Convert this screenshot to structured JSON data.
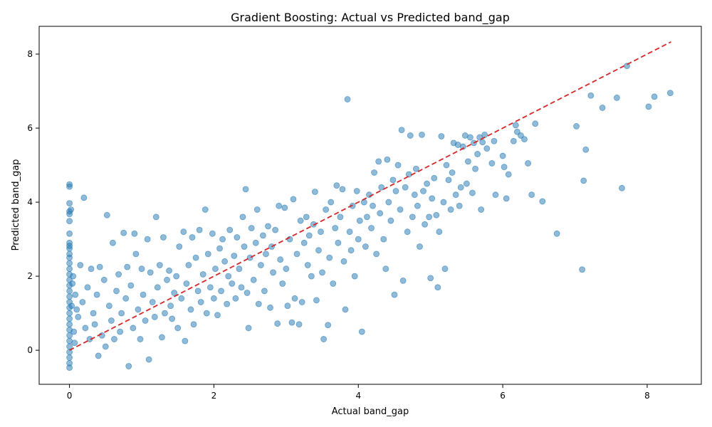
{
  "chart_data": {
    "type": "scatter",
    "title": "Gradient Boosting: Actual vs Predicted band_gap",
    "xlabel": "Actual band_gap",
    "ylabel": "Predicted band_gap",
    "xlim": [
      -0.42,
      8.75
    ],
    "ylim": [
      -0.92,
      8.75
    ],
    "xticks": [
      0,
      2,
      4,
      6,
      8
    ],
    "yticks": [
      0,
      2,
      4,
      6,
      8
    ],
    "grid": false,
    "legend": "none",
    "colors": {
      "points": "#1f77b4",
      "reference_line": "#d62728"
    },
    "reference_line": {
      "style": "dashed",
      "from": [
        0,
        0
      ],
      "to": [
        8.33,
        8.33
      ]
    },
    "points": [
      [
        0,
        4.48
      ],
      [
        0,
        4.42
      ],
      [
        0,
        3.97
      ],
      [
        0,
        3.75
      ],
      [
        0,
        3.68
      ],
      [
        0,
        3.49
      ],
      [
        0,
        3.15
      ],
      [
        0,
        2.9
      ],
      [
        0,
        2.82
      ],
      [
        0,
        2.75
      ],
      [
        0,
        2.6
      ],
      [
        0,
        2.5
      ],
      [
        0,
        2.35
      ],
      [
        0,
        2.2
      ],
      [
        0,
        2.05
      ],
      [
        0,
        1.9
      ],
      [
        0,
        1.75
      ],
      [
        0,
        1.6
      ],
      [
        0,
        1.45
      ],
      [
        0,
        1.3
      ],
      [
        0,
        1.15
      ],
      [
        0,
        1.0
      ],
      [
        0,
        0.85
      ],
      [
        0,
        0.7
      ],
      [
        0,
        0.55
      ],
      [
        0,
        0.4
      ],
      [
        0,
        0.25
      ],
      [
        0,
        0.1
      ],
      [
        0,
        -0.05
      ],
      [
        0,
        -0.2
      ],
      [
        0,
        -0.35
      ],
      [
        0,
        -0.47
      ],
      [
        0.02,
        3.8
      ],
      [
        0.05,
        2.0
      ],
      [
        0.03,
        1.2
      ],
      [
        0.06,
        0.5
      ],
      [
        0.04,
        1.8
      ],
      [
        0.08,
        1.5
      ],
      [
        0.07,
        0.2
      ],
      [
        0.1,
        1.1
      ],
      [
        0.12,
        0.9
      ],
      [
        0.15,
        2.3
      ],
      [
        0.18,
        1.3
      ],
      [
        0.2,
        4.12
      ],
      [
        0.22,
        0.6
      ],
      [
        0.25,
        1.7
      ],
      [
        0.28,
        0.3
      ],
      [
        0.3,
        2.2
      ],
      [
        0.33,
        1.0
      ],
      [
        0.35,
        0.7
      ],
      [
        0.38,
        1.5
      ],
      [
        0.4,
        -0.15
      ],
      [
        0.42,
        2.25
      ],
      [
        0.45,
        0.4
      ],
      [
        0.48,
        1.9
      ],
      [
        0.5,
        0.1
      ],
      [
        0.52,
        3.65
      ],
      [
        0.55,
        1.2
      ],
      [
        0.58,
        0.8
      ],
      [
        0.6,
        2.9
      ],
      [
        0.62,
        0.3
      ],
      [
        0.65,
        1.6
      ],
      [
        0.68,
        2.05
      ],
      [
        0.7,
        0.5
      ],
      [
        0.72,
        1.0
      ],
      [
        0.75,
        3.17
      ],
      [
        0.78,
        1.4
      ],
      [
        0.8,
        2.25
      ],
      [
        0.82,
        -0.43
      ],
      [
        0.85,
        1.75
      ],
      [
        0.88,
        0.6
      ],
      [
        0.9,
        3.15
      ],
      [
        0.92,
        2.6
      ],
      [
        0.95,
        1.1
      ],
      [
        0.98,
        0.3
      ],
      [
        1.0,
        2.2
      ],
      [
        1.02,
        1.5
      ],
      [
        1.05,
        0.8
      ],
      [
        1.08,
        3.0
      ],
      [
        1.1,
        -0.25
      ],
      [
        1.12,
        2.1
      ],
      [
        1.15,
        1.3
      ],
      [
        1.18,
        0.9
      ],
      [
        1.2,
        3.6
      ],
      [
        1.22,
        1.7
      ],
      [
        1.25,
        2.3
      ],
      [
        1.28,
        0.35
      ],
      [
        1.3,
        3.05
      ],
      [
        1.32,
        1.0
      ],
      [
        1.35,
        1.9
      ],
      [
        1.38,
        2.15
      ],
      [
        1.4,
        1.2
      ],
      [
        1.42,
        0.85
      ],
      [
        1.45,
        1.55
      ],
      [
        1.48,
        2.0
      ],
      [
        1.5,
        0.6
      ],
      [
        1.52,
        2.8
      ],
      [
        1.55,
        1.4
      ],
      [
        1.58,
        3.2
      ],
      [
        1.6,
        0.25
      ],
      [
        1.62,
        1.8
      ],
      [
        1.65,
        2.3
      ],
      [
        1.68,
        1.1
      ],
      [
        1.7,
        3.05
      ],
      [
        1.72,
        0.7
      ],
      [
        1.75,
        2.5
      ],
      [
        1.78,
        1.6
      ],
      [
        1.8,
        3.25
      ],
      [
        1.82,
        1.3
      ],
      [
        1.85,
        2.05
      ],
      [
        1.88,
        3.8
      ],
      [
        1.9,
        1.0
      ],
      [
        1.92,
        2.6
      ],
      [
        1.95,
        1.7
      ],
      [
        1.98,
        3.15
      ],
      [
        2.0,
        1.4
      ],
      [
        2.02,
        2.2
      ],
      [
        2.05,
        0.95
      ],
      [
        2.08,
        2.75
      ],
      [
        2.1,
        1.6
      ],
      [
        2.12,
        3.0
      ],
      [
        2.15,
        2.4
      ],
      [
        2.18,
        1.25
      ],
      [
        2.2,
        2.0
      ],
      [
        2.22,
        3.25
      ],
      [
        2.25,
        1.8
      ],
      [
        2.28,
        2.55
      ],
      [
        2.3,
        1.4
      ],
      [
        2.32,
        3.05
      ],
      [
        2.35,
        2.2
      ],
      [
        2.38,
        1.7
      ],
      [
        2.4,
        3.6
      ],
      [
        2.42,
        2.8
      ],
      [
        2.44,
        4.35
      ],
      [
        2.46,
        1.55
      ],
      [
        2.48,
        0.6
      ],
      [
        2.5,
        2.5
      ],
      [
        2.52,
        3.3
      ],
      [
        2.55,
        1.9
      ],
      [
        2.58,
        2.9
      ],
      [
        2.6,
        3.8
      ],
      [
        2.62,
        1.25
      ],
      [
        2.65,
        2.3
      ],
      [
        2.68,
        3.1
      ],
      [
        2.7,
        1.6
      ],
      [
        2.72,
        2.6
      ],
      [
        2.75,
        3.35
      ],
      [
        2.78,
        1.15
      ],
      [
        2.8,
        2.8
      ],
      [
        2.82,
        2.1
      ],
      [
        2.85,
        3.25
      ],
      [
        2.88,
        0.72
      ],
      [
        2.9,
        3.9
      ],
      [
        2.92,
        2.45
      ],
      [
        2.95,
        1.8
      ],
      [
        2.98,
        3.85
      ],
      [
        3.0,
        2.2
      ],
      [
        3.02,
        1.2
      ],
      [
        3.05,
        3.0
      ],
      [
        3.08,
        0.75
      ],
      [
        3.1,
        4.08
      ],
      [
        3.12,
        1.4
      ],
      [
        3.15,
        2.6
      ],
      [
        3.18,
        0.7
      ],
      [
        3.2,
        3.5
      ],
      [
        3.22,
        1.3
      ],
      [
        3.25,
        2.9
      ],
      [
        3.28,
        3.6
      ],
      [
        3.3,
        2.3
      ],
      [
        3.32,
        3.1
      ],
      [
        3.35,
        2.0
      ],
      [
        3.38,
        3.4
      ],
      [
        3.4,
        4.28
      ],
      [
        3.42,
        1.35
      ],
      [
        3.45,
        2.7
      ],
      [
        3.48,
        3.2
      ],
      [
        3.5,
        2.1
      ],
      [
        3.52,
        0.3
      ],
      [
        3.55,
        3.8
      ],
      [
        3.58,
        0.68
      ],
      [
        3.6,
        2.5
      ],
      [
        3.62,
        4.0
      ],
      [
        3.65,
        1.8
      ],
      [
        3.68,
        3.3
      ],
      [
        3.7,
        4.45
      ],
      [
        3.72,
        2.9
      ],
      [
        3.75,
        3.6
      ],
      [
        3.78,
        4.35
      ],
      [
        3.8,
        2.4
      ],
      [
        3.82,
        1.1
      ],
      [
        3.85,
        6.78
      ],
      [
        3.88,
        3.2
      ],
      [
        3.9,
        2.7
      ],
      [
        3.92,
        3.9
      ],
      [
        3.95,
        2.0
      ],
      [
        3.98,
        4.3
      ],
      [
        4.0,
        3.0
      ],
      [
        4.02,
        3.5
      ],
      [
        4.05,
        0.5
      ],
      [
        4.08,
        4.0
      ],
      [
        4.1,
        2.8
      ],
      [
        4.12,
        3.6
      ],
      [
        4.15,
        4.2
      ],
      [
        4.18,
        3.3
      ],
      [
        4.2,
        3.9
      ],
      [
        4.22,
        4.8
      ],
      [
        4.25,
        2.6
      ],
      [
        4.28,
        5.1
      ],
      [
        4.3,
        3.7
      ],
      [
        4.32,
        4.4
      ],
      [
        4.35,
        3.0
      ],
      [
        4.38,
        2.2
      ],
      [
        4.4,
        5.15
      ],
      [
        4.42,
        4.0
      ],
      [
        4.45,
        3.5
      ],
      [
        4.48,
        4.6
      ],
      [
        4.5,
        1.5
      ],
      [
        4.52,
        4.3
      ],
      [
        4.55,
        5.0
      ],
      [
        4.58,
        3.8
      ],
      [
        4.6,
        5.95
      ],
      [
        4.62,
        1.88
      ],
      [
        4.65,
        4.4
      ],
      [
        4.68,
        3.2
      ],
      [
        4.7,
        4.75
      ],
      [
        4.72,
        5.8
      ],
      [
        4.75,
        3.6
      ],
      [
        4.78,
        4.2
      ],
      [
        4.8,
        4.9
      ],
      [
        4.82,
        3.9
      ],
      [
        4.85,
        2.8
      ],
      [
        4.88,
        5.82
      ],
      [
        4.9,
        4.3
      ],
      [
        4.92,
        3.4
      ],
      [
        4.95,
        4.5
      ],
      [
        4.98,
        3.6
      ],
      [
        5.0,
        1.95
      ],
      [
        5.02,
        4.1
      ],
      [
        5.05,
        4.65
      ],
      [
        5.08,
        3.65
      ],
      [
        5.1,
        1.7
      ],
      [
        5.12,
        3.2
      ],
      [
        5.15,
        5.78
      ],
      [
        5.18,
        4.0
      ],
      [
        5.2,
        2.2
      ],
      [
        5.22,
        5.0
      ],
      [
        5.25,
        4.6
      ],
      [
        5.28,
        3.8
      ],
      [
        5.3,
        4.8
      ],
      [
        5.32,
        5.6
      ],
      [
        5.35,
        4.2
      ],
      [
        5.38,
        5.55
      ],
      [
        5.4,
        3.9
      ],
      [
        5.42,
        4.4
      ],
      [
        5.45,
        5.5
      ],
      [
        5.48,
        5.8
      ],
      [
        5.5,
        4.5
      ],
      [
        5.52,
        5.1
      ],
      [
        5.55,
        5.75
      ],
      [
        5.58,
        4.25
      ],
      [
        5.6,
        5.6
      ],
      [
        5.62,
        4.9
      ],
      [
        5.65,
        5.3
      ],
      [
        5.68,
        5.75
      ],
      [
        5.7,
        3.8
      ],
      [
        5.72,
        5.62
      ],
      [
        5.75,
        5.82
      ],
      [
        5.78,
        5.45
      ],
      [
        5.85,
        5.05
      ],
      [
        5.88,
        5.65
      ],
      [
        5.9,
        4.2
      ],
      [
        6.0,
        5.25
      ],
      [
        6.02,
        4.95
      ],
      [
        6.05,
        4.1
      ],
      [
        6.08,
        4.75
      ],
      [
        6.15,
        5.65
      ],
      [
        6.18,
        6.08
      ],
      [
        6.2,
        5.9
      ],
      [
        6.25,
        5.8
      ],
      [
        6.3,
        5.7
      ],
      [
        6.35,
        5.05
      ],
      [
        6.4,
        4.2
      ],
      [
        6.45,
        6.12
      ],
      [
        6.55,
        4.02
      ],
      [
        6.75,
        3.15
      ],
      [
        7.02,
        6.05
      ],
      [
        7.1,
        2.18
      ],
      [
        7.12,
        4.58
      ],
      [
        7.15,
        5.42
      ],
      [
        7.22,
        6.88
      ],
      [
        7.38,
        6.55
      ],
      [
        7.58,
        6.82
      ],
      [
        7.65,
        4.38
      ],
      [
        7.72,
        7.68
      ],
      [
        8.02,
        6.58
      ],
      [
        8.1,
        6.85
      ],
      [
        8.32,
        6.95
      ]
    ]
  }
}
